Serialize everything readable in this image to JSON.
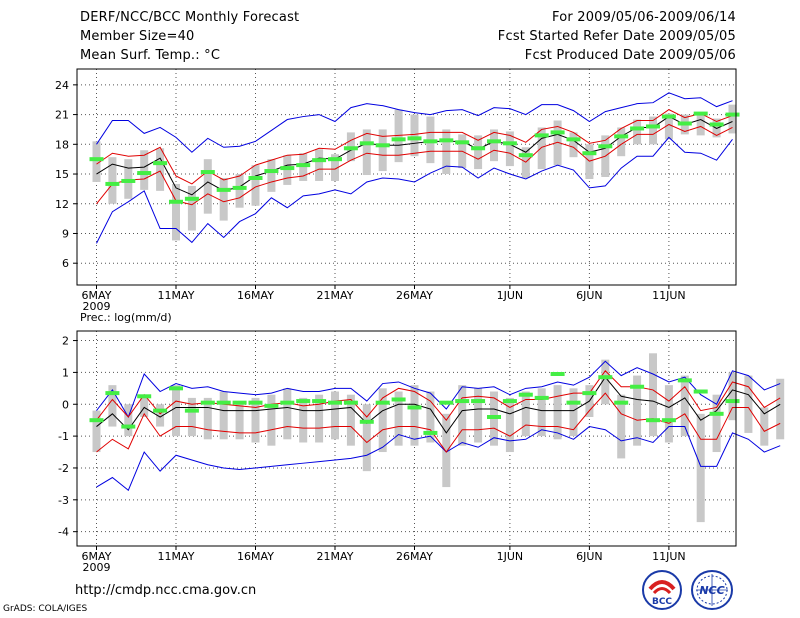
{
  "header": {
    "title": "DERF/NCC/BCC Monthly Forecast",
    "member_size": "Member Size=40",
    "variable1": "Mean Surf. Temp.: °C",
    "period": "For 2009/05/06-2009/06/14",
    "started": "Fcst Started Refer Date 2009/05/05",
    "produced": "Fcst Produced Date 2009/05/06"
  },
  "footer": {
    "url": "http://cmdp.ncc.cma.gov.cn",
    "software": "GrADS: COLA/IGES",
    "logo1_text": "BCC",
    "logo2_text": "NCC"
  },
  "colors": {
    "mean": "#000000",
    "std": "#e00000",
    "extreme": "#0000e0",
    "box": "#c8c8c8",
    "obs": "#44ee44",
    "grid": "#555555"
  },
  "chart_data": [
    {
      "type": "line",
      "title": "Mean Surf. Temp.: °C",
      "x_tick_labels": [
        "6MAY",
        "11MAY",
        "16MAY",
        "21MAY",
        "26MAY",
        "1JUN",
        "6JUN",
        "11JUN"
      ],
      "x_tick_days": [
        1,
        6,
        11,
        16,
        21,
        27,
        32,
        37
      ],
      "year_label": "2009",
      "yticks": [
        6,
        9,
        12,
        15,
        18,
        21,
        24
      ],
      "ylim": [
        3.8,
        25.6
      ],
      "grid": true,
      "series": [
        {
          "name": "ensemble mean",
          "values": [
            15.0,
            16.0,
            15.6,
            15.7,
            16.6,
            13.6,
            12.9,
            14.2,
            13.3,
            13.7,
            14.8,
            15.3,
            15.9,
            16.0,
            16.6,
            16.5,
            17.4,
            18.1,
            17.9,
            17.9,
            18.1,
            18.3,
            18.3,
            18.3,
            17.5,
            18.3,
            18.0,
            17.2,
            18.6,
            19.0,
            18.4,
            17.2,
            17.6,
            18.8,
            19.7,
            19.7,
            20.8,
            20.0,
            20.5,
            19.6,
            20.3
          ]
        },
        {
          "name": "mean + std",
          "values": [
            16.0,
            17.1,
            16.8,
            16.9,
            17.7,
            14.8,
            14.0,
            15.3,
            14.4,
            14.8,
            15.9,
            16.4,
            16.9,
            17.0,
            17.6,
            17.5,
            18.4,
            19.1,
            18.8,
            18.9,
            19.0,
            19.2,
            19.2,
            19.2,
            18.4,
            19.2,
            18.9,
            18.2,
            19.5,
            19.8,
            19.2,
            18.1,
            18.4,
            19.6,
            20.4,
            20.4,
            21.5,
            20.7,
            21.1,
            20.3,
            20.9
          ]
        },
        {
          "name": "mean - std",
          "values": [
            12.0,
            14.0,
            14.4,
            14.5,
            15.3,
            12.3,
            11.9,
            13.0,
            12.2,
            12.6,
            13.7,
            14.2,
            14.6,
            14.8,
            15.5,
            15.5,
            16.4,
            17.1,
            16.9,
            16.9,
            17.1,
            17.3,
            17.3,
            17.3,
            16.5,
            17.4,
            17.1,
            16.2,
            17.7,
            18.2,
            17.7,
            16.3,
            16.8,
            18.0,
            19.0,
            19.0,
            20.0,
            19.3,
            19.8,
            18.9,
            19.7
          ]
        },
        {
          "name": "ensemble max",
          "values": [
            18.0,
            20.4,
            20.4,
            19.1,
            19.7,
            18.7,
            17.2,
            18.6,
            17.7,
            17.8,
            18.3,
            19.4,
            20.5,
            20.8,
            21.0,
            20.3,
            21.7,
            22.1,
            21.9,
            21.5,
            21.2,
            21.0,
            21.4,
            21.5,
            20.9,
            21.7,
            21.6,
            21.0,
            22.0,
            22.0,
            21.4,
            20.3,
            21.3,
            21.7,
            22.1,
            22.2,
            23.2,
            22.6,
            22.7,
            21.8,
            22.4
          ]
        },
        {
          "name": "ensemble min",
          "values": [
            8.0,
            11.2,
            12.2,
            13.3,
            9.5,
            9.5,
            8.1,
            10.0,
            8.6,
            10.2,
            11.0,
            12.6,
            11.6,
            12.8,
            13.0,
            13.4,
            13.0,
            14.2,
            14.6,
            14.5,
            14.2,
            15.1,
            15.8,
            15.7,
            14.6,
            15.6,
            15.0,
            14.5,
            15.3,
            15.9,
            15.4,
            13.6,
            13.8,
            15.6,
            16.8,
            16.8,
            18.7,
            17.2,
            17.1,
            16.4,
            18.5
          ]
        },
        {
          "name": "box top",
          "values": [
            18.3,
            16.7,
            16.5,
            17.4,
            17.6,
            14.0,
            13.8,
            16.5,
            14.6,
            15.0,
            15.9,
            16.5,
            16.9,
            17.1,
            17.5,
            17.0,
            19.2,
            19.5,
            19.5,
            21.5,
            21.0,
            20.8,
            19.5,
            19.0,
            18.9,
            19.5,
            19.3,
            17.7,
            19.7,
            20.4,
            19.2,
            18.0,
            18.9,
            19.7,
            20.5,
            20.8,
            21.1,
            21.0,
            21.1,
            20.6,
            22.0
          ]
        },
        {
          "name": "box bottom",
          "values": [
            14.2,
            12.0,
            12.5,
            13.4,
            13.3,
            8.3,
            9.3,
            11.0,
            10.3,
            11.6,
            11.8,
            13.2,
            13.9,
            14.3,
            14.3,
            14.3,
            16.3,
            14.9,
            15.3,
            16.2,
            16.8,
            16.1,
            15.0,
            15.6,
            15.5,
            16.3,
            15.8,
            14.6,
            15.5,
            15.9,
            16.7,
            14.5,
            14.7,
            16.8,
            18.0,
            18.0,
            18.5,
            19.0,
            18.9,
            18.7,
            19.1
          ]
        },
        {
          "name": "observed",
          "values": [
            16.5,
            14.0,
            14.3,
            15.1,
            16.1,
            12.2,
            12.5,
            15.2,
            13.4,
            13.6,
            14.6,
            15.3,
            15.6,
            15.9,
            16.4,
            16.5,
            17.6,
            18.1,
            17.9,
            18.5,
            18.6,
            18.3,
            18.4,
            18.2,
            17.6,
            18.3,
            18.1,
            16.9,
            18.9,
            19.2,
            18.5,
            17.1,
            17.8,
            18.8,
            19.6,
            19.8,
            20.8,
            20.1,
            21.1,
            20.0,
            21.0
          ]
        }
      ]
    },
    {
      "type": "line",
      "title": "Prec.: log(mm/d)",
      "x_tick_labels": [
        "6MAY",
        "11MAY",
        "16MAY",
        "21MAY",
        "26MAY",
        "1JUN",
        "6JUN",
        "11JUN"
      ],
      "x_tick_days": [
        1,
        6,
        11,
        16,
        21,
        27,
        32,
        37
      ],
      "year_label": "2009",
      "yticks": [
        -4,
        -3,
        -2,
        -1,
        0,
        1,
        2
      ],
      "ylim": [
        -4.45,
        2.3
      ],
      "grid": true,
      "series": [
        {
          "name": "ensemble mean",
          "values": [
            -0.7,
            -0.3,
            -0.8,
            -0.1,
            -0.4,
            -0.1,
            -0.1,
            -0.1,
            -0.2,
            -0.2,
            -0.2,
            -0.15,
            -0.1,
            -0.2,
            -0.2,
            -0.15,
            -0.1,
            -0.6,
            -0.2,
            0.0,
            0.0,
            -0.15,
            -0.9,
            -0.2,
            -0.15,
            -0.15,
            -0.3,
            -0.1,
            -0.2,
            -0.2,
            -0.2,
            0.1,
            0.85,
            0.25,
            0.15,
            0.1,
            -0.1,
            0.2,
            -0.5,
            -0.2,
            0.45,
            0.3,
            -0.3,
            0.0
          ]
        },
        {
          "name": "mean + std",
          "values": [
            -0.5,
            0.15,
            -0.4,
            0.3,
            -0.3,
            0.1,
            0.0,
            0.05,
            0.0,
            -0.05,
            -0.1,
            0.0,
            0.05,
            -0.05,
            0.0,
            0.1,
            0.15,
            -0.4,
            0.2,
            0.5,
            0.4,
            0.1,
            -0.5,
            0.2,
            0.25,
            0.2,
            -0.1,
            0.15,
            0.15,
            0.25,
            0.35,
            0.35,
            1.05,
            0.55,
            0.55,
            0.45,
            0.1,
            0.55,
            -0.2,
            -0.1,
            0.7,
            0.55,
            -0.1,
            0.2
          ]
        },
        {
          "name": "mean - std",
          "values": [
            -1.5,
            -1.1,
            -1.4,
            -0.3,
            -1.0,
            -0.7,
            -0.7,
            -0.8,
            -0.85,
            -0.9,
            -0.9,
            -0.8,
            -0.7,
            -0.75,
            -0.75,
            -0.7,
            -0.7,
            -1.2,
            -0.8,
            -0.7,
            -0.7,
            -0.8,
            -1.5,
            -0.8,
            -0.8,
            -0.75,
            -1.0,
            -0.65,
            -0.7,
            -0.7,
            -0.8,
            -0.2,
            0.35,
            -0.3,
            -0.5,
            -0.45,
            -0.6,
            -0.3,
            -1.1,
            -1.1,
            -0.1,
            -0.1,
            -0.85,
            -0.6
          ]
        },
        {
          "name": "ensemble max",
          "values": [
            -0.2,
            0.45,
            -0.4,
            0.95,
            0.4,
            0.65,
            0.5,
            0.55,
            0.4,
            0.35,
            0.3,
            0.35,
            0.5,
            0.4,
            0.4,
            0.5,
            0.5,
            0.1,
            0.65,
            0.7,
            0.5,
            0.35,
            -0.15,
            0.55,
            0.5,
            0.55,
            0.3,
            0.5,
            0.55,
            0.7,
            0.6,
            0.85,
            1.35,
            0.9,
            1.15,
            0.95,
            0.7,
            0.85,
            0.3,
            0.0,
            1.05,
            0.9,
            0.45,
            0.65
          ]
        },
        {
          "name": "ensemble min",
          "values": [
            -2.6,
            -2.3,
            -2.7,
            -1.5,
            -2.1,
            -1.6,
            -1.75,
            -1.9,
            -2.0,
            -2.05,
            -2.0,
            -1.95,
            -1.9,
            -1.85,
            -1.8,
            -1.75,
            -1.7,
            -1.6,
            -1.35,
            -0.95,
            -1.1,
            -1.0,
            -1.5,
            -1.2,
            -1.35,
            -1.05,
            -1.15,
            -1.1,
            -0.8,
            -0.9,
            -1.1,
            -0.7,
            -0.8,
            -1.15,
            -1.05,
            -1.2,
            -0.7,
            -0.7,
            -1.95,
            -1.95,
            -0.9,
            -1.1,
            -1.5,
            -1.3
          ]
        },
        {
          "name": "box top",
          "values": [
            -0.2,
            0.6,
            0.0,
            0.3,
            0.0,
            0.6,
            0.2,
            0.2,
            0.4,
            0.1,
            0.2,
            0.3,
            0.5,
            0.2,
            0.3,
            0.4,
            0.3,
            0.0,
            0.5,
            0.4,
            0.6,
            0.4,
            -0.3,
            0.6,
            0.5,
            0.4,
            0.2,
            0.4,
            0.5,
            0.6,
            0.5,
            0.6,
            1.4,
            0.3,
            0.9,
            1.6,
            0.6,
            0.9,
            -0.3,
            0.3,
            1.0,
            0.9,
            -0.1,
            0.8
          ]
        },
        {
          "name": "box bottom",
          "values": [
            -1.5,
            -0.7,
            -1.0,
            -0.4,
            -0.7,
            -1.0,
            -1.0,
            -1.1,
            -1.1,
            -1.1,
            -1.2,
            -1.3,
            -1.1,
            -1.2,
            -1.2,
            -1.1,
            -1.3,
            -2.1,
            -1.5,
            -1.3,
            -1.3,
            -1.2,
            -2.6,
            -1.3,
            -1.2,
            -1.3,
            -1.5,
            -1.0,
            -1.0,
            -1.1,
            -1.0,
            -0.4,
            0.0,
            -1.7,
            -1.3,
            -1.0,
            -1.2,
            -1.0,
            -3.7,
            -1.5,
            -0.5,
            -0.9,
            -1.3,
            -1.1
          ]
        },
        {
          "name": "observed",
          "values": [
            -0.5,
            0.35,
            -0.7,
            0.25,
            -0.2,
            0.5,
            -0.2,
            0.05,
            0.05,
            0.05,
            0.05,
            -0.05,
            0.05,
            0.1,
            0.1,
            0.05,
            0.05,
            -0.55,
            0.05,
            0.15,
            -0.1,
            -0.9,
            0.05,
            0.1,
            0.1,
            -0.4,
            0.1,
            0.3,
            0.2,
            0.95,
            0.05,
            0.35,
            0.85,
            0.05,
            0.55,
            -0.5,
            -0.5,
            0.75,
            0.4,
            -0.3,
            0.1,
            null,
            null,
            null
          ]
        }
      ]
    }
  ]
}
